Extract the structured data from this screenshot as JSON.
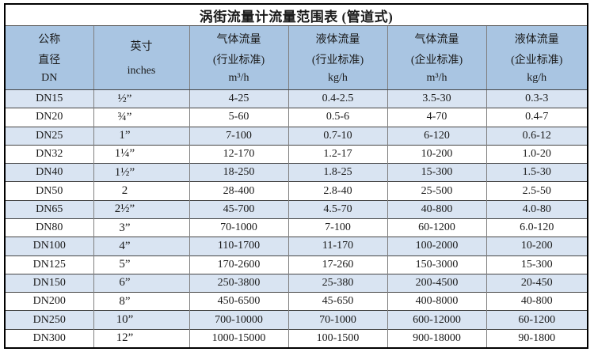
{
  "title": "涡街流量计流量范围表 (管道式)",
  "colors": {
    "header_bg": "#a9c5e2",
    "row_alt_bg": "#d9e4f2",
    "row_bg": "#ffffff",
    "outer_border": "#000000",
    "grid_horizontal": "#454545",
    "grid_vertical": "#7f7f7f",
    "text": "#1a1a1a"
  },
  "header": {
    "columns": [
      {
        "id": "dn",
        "lines": [
          "公称",
          "直径",
          "DN"
        ]
      },
      {
        "id": "inches",
        "lines": [
          "英寸",
          "inches"
        ]
      },
      {
        "id": "gas-industry",
        "lines": [
          "气体流量",
          "(行业标准)",
          "m³/h"
        ]
      },
      {
        "id": "liquid-industry",
        "lines": [
          "液体流量",
          "(行业标准)",
          "kg/h"
        ]
      },
      {
        "id": "gas-enterprise",
        "lines": [
          "气体流量",
          "(企业标准)",
          "m³/h"
        ]
      },
      {
        "id": "liquid-enterprise",
        "lines": [
          "液体流量",
          "(企业标准)",
          "kg/h"
        ]
      }
    ]
  },
  "rows": [
    {
      "cells": [
        "DN15",
        "½”",
        "4-25",
        "0.4-2.5",
        "3.5-30",
        "0.3-3"
      ]
    },
    {
      "cells": [
        "DN20",
        "¾”",
        "5-60",
        "0.5-6",
        "4-70",
        "0.4-7"
      ]
    },
    {
      "cells": [
        "DN25",
        "1”",
        "7-100",
        "0.7-10",
        "6-120",
        "0.6-12"
      ]
    },
    {
      "cells": [
        "DN32",
        "1¼”",
        "12-170",
        "1.2-17",
        "10-200",
        "1.0-20"
      ]
    },
    {
      "cells": [
        "DN40",
        "1½”",
        "18-250",
        "1.8-25",
        "15-300",
        "1.5-30"
      ]
    },
    {
      "cells": [
        "DN50",
        "2",
        "28-400",
        "2.8-40",
        "25-500",
        "2.5-50"
      ]
    },
    {
      "cells": [
        "DN65",
        "2½”",
        "45-700",
        "4.5-70",
        "40-800",
        "4.0-80"
      ]
    },
    {
      "cells": [
        "DN80",
        "3”",
        "70-1000",
        "7-100",
        "60-1200",
        "6.0-120"
      ]
    },
    {
      "cells": [
        "DN100",
        "4”",
        "110-1700",
        "11-170",
        "100-2000",
        "10-200"
      ]
    },
    {
      "cells": [
        "DN125",
        "5”",
        "170-2600",
        "17-260",
        "150-3000",
        "15-300"
      ]
    },
    {
      "cells": [
        "DN150",
        "6”",
        "250-3800",
        "25-380",
        "200-4500",
        "20-450"
      ]
    },
    {
      "cells": [
        "DN200",
        "8”",
        "450-6500",
        "45-650",
        "400-8000",
        "40-800"
      ]
    },
    {
      "cells": [
        "DN250",
        "10”",
        "700-10000",
        "70-1000",
        "600-12000",
        "60-1200"
      ]
    },
    {
      "cells": [
        "DN300",
        "12”",
        "1000-15000",
        "100-1500",
        "900-18000",
        "90-1800"
      ]
    }
  ]
}
